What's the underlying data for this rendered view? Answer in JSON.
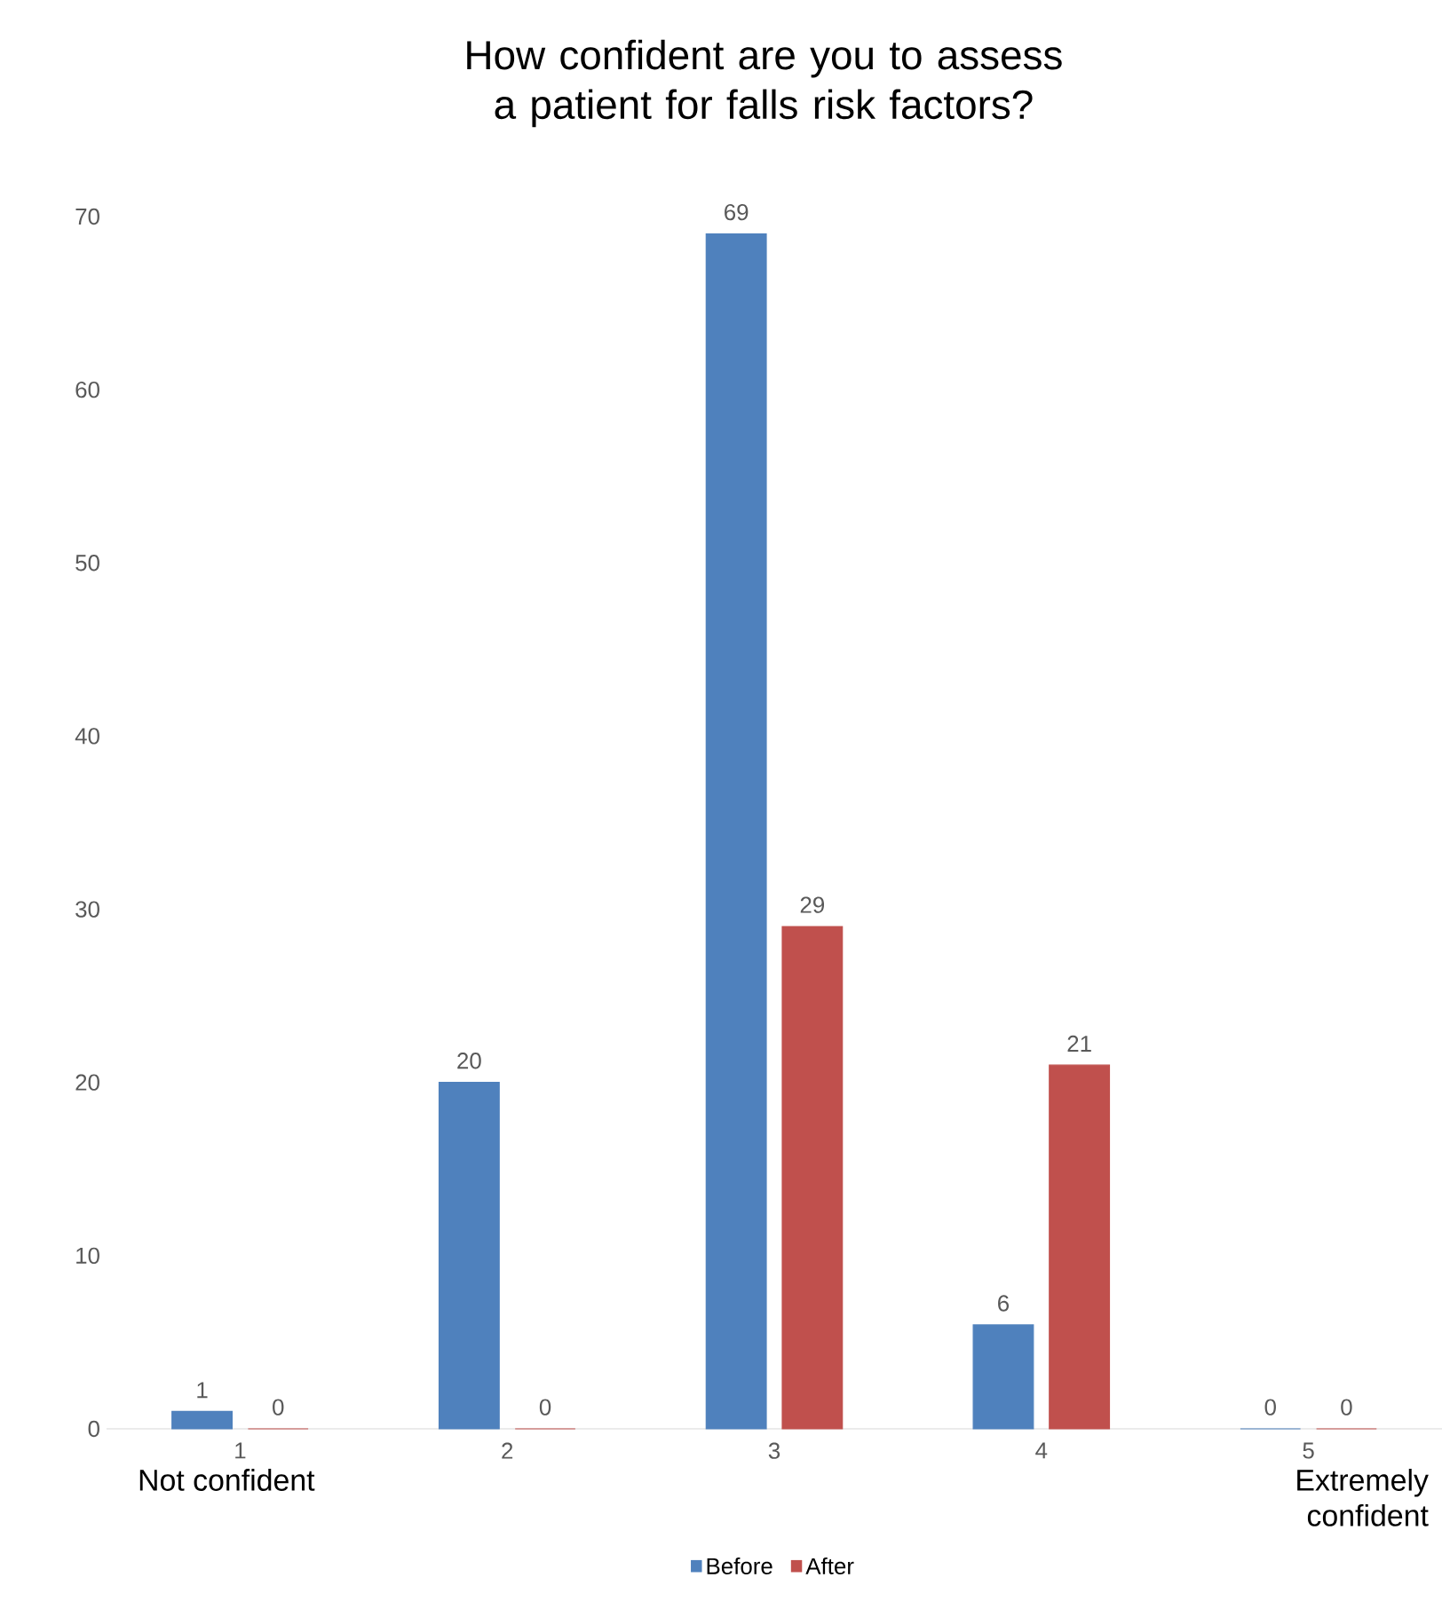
{
  "chart_data": {
    "type": "bar",
    "title": "How confident are you to assess a patient for falls risk factors?",
    "categories": [
      "1",
      "2",
      "3",
      "4",
      "5"
    ],
    "series": [
      {
        "name": "Before",
        "color": "#4f81bd",
        "values": [
          1,
          20,
          69,
          6,
          0
        ]
      },
      {
        "name": "After",
        "color": "#c0504d",
        "values": [
          0,
          0,
          29,
          21,
          0
        ]
      }
    ],
    "ylim": [
      0,
      70
    ],
    "yticks": [
      0,
      10,
      20,
      30,
      40,
      50,
      60,
      70
    ],
    "data_labels": true,
    "legend": "bottom",
    "grid": false,
    "annotations": [
      "Not confident",
      "Extremely confident"
    ]
  }
}
